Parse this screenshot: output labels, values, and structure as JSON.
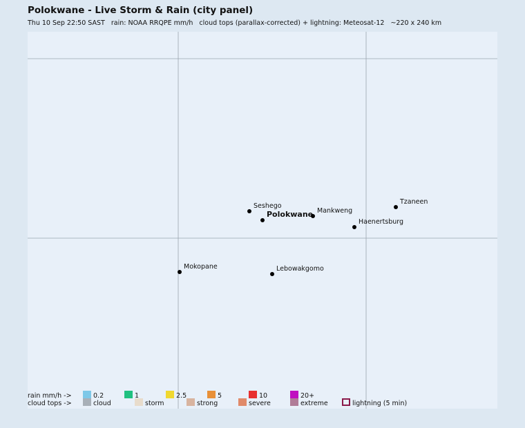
{
  "header": {
    "title": "Polokwane - Live Storm & Rain (city panel)",
    "subtitle": "Thu 10 Sep 22:50 SAST   rain: NOAA RRQPE mm/h   cloud tops (parallax-corrected) + lightning: Meteosat-12   ~220 x 240 km"
  },
  "cities": [
    {
      "label": "Seshego"
    },
    {
      "label": "Polokwane"
    },
    {
      "label": "Mankweng"
    },
    {
      "label": "Tzaneen"
    },
    {
      "label": "Haenertsburg"
    },
    {
      "label": "Mokopane"
    },
    {
      "label": "Lebowakgomo"
    }
  ],
  "legend": {
    "rain_label": "rain mm/h ->",
    "rain": [
      {
        "label": "0.2",
        "color": "#7ec8e8"
      },
      {
        "label": "1",
        "color": "#20c080"
      },
      {
        "label": "2.5",
        "color": "#f0d830"
      },
      {
        "label": "5",
        "color": "#e89038"
      },
      {
        "label": "10",
        "color": "#e83030"
      },
      {
        "label": "20+",
        "color": "#c010c0"
      }
    ],
    "cloud_label": "cloud tops ->",
    "cloud": [
      {
        "label": "cloud",
        "color": "#a8b0b8"
      },
      {
        "label": "storm",
        "color": "#e8dccc"
      },
      {
        "label": "strong",
        "color": "#d8b4a0"
      },
      {
        "label": "severe",
        "color": "#e08a6a"
      },
      {
        "label": "extreme",
        "color": "#b07c98"
      }
    ],
    "lightning": {
      "label": "lightning (5 min)",
      "color": "#8a1a4a"
    }
  }
}
